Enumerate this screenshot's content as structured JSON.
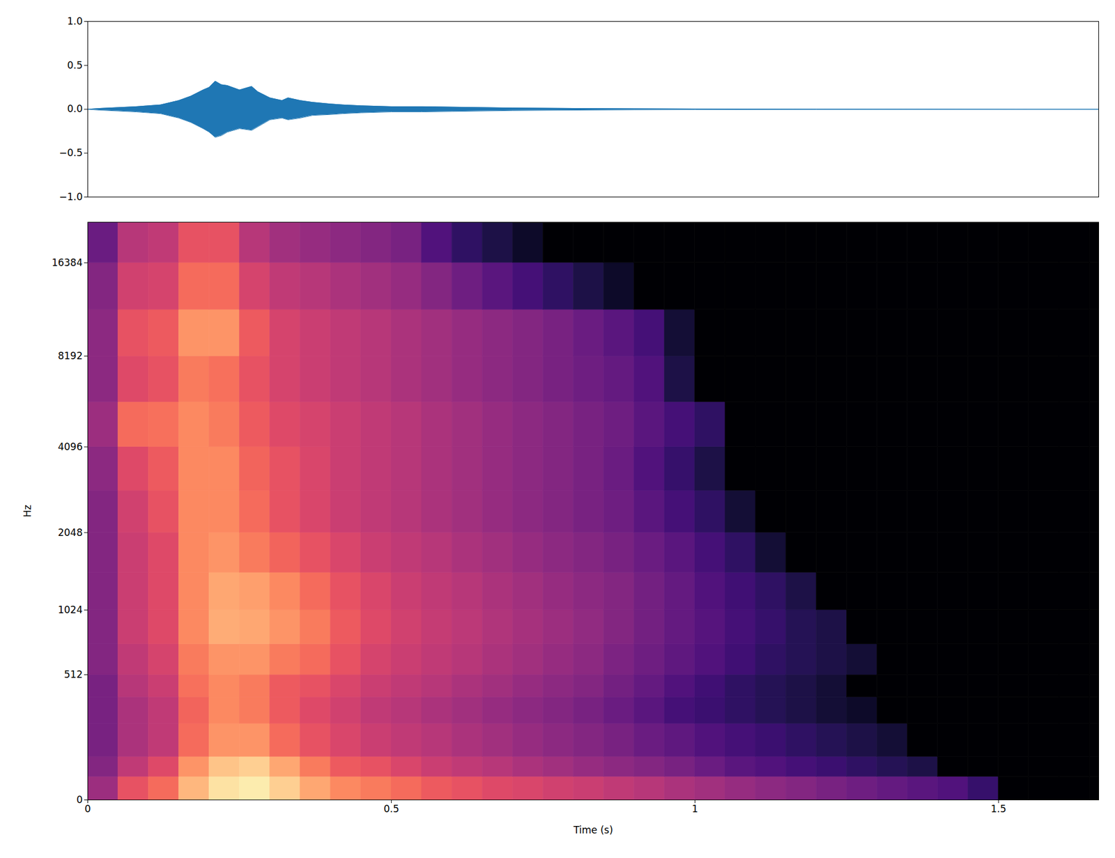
{
  "chart_data": [
    {
      "type": "area",
      "x": [
        0,
        0.02,
        0.05,
        0.08,
        0.1,
        0.12,
        0.15,
        0.17,
        0.19,
        0.2,
        0.21,
        0.22,
        0.23,
        0.25,
        0.27,
        0.28,
        0.3,
        0.32,
        0.33,
        0.35,
        0.37,
        0.4,
        0.42,
        0.45,
        0.5,
        0.55,
        0.6,
        0.7,
        0.8,
        0.9,
        1.0,
        1.2,
        1.4,
        1.665
      ],
      "upper": [
        0,
        0.01,
        0.02,
        0.03,
        0.04,
        0.05,
        0.1,
        0.15,
        0.22,
        0.25,
        0.32,
        0.28,
        0.27,
        0.22,
        0.26,
        0.2,
        0.13,
        0.1,
        0.13,
        0.1,
        0.08,
        0.06,
        0.05,
        0.04,
        0.03,
        0.03,
        0.025,
        0.015,
        0.01,
        0.006,
        0.004,
        0.002,
        0.001,
        0
      ],
      "lower": [
        0,
        -0.01,
        -0.02,
        -0.03,
        -0.04,
        -0.05,
        -0.1,
        -0.15,
        -0.22,
        -0.26,
        -0.32,
        -0.3,
        -0.26,
        -0.22,
        -0.24,
        -0.2,
        -0.12,
        -0.1,
        -0.12,
        -0.1,
        -0.07,
        -0.06,
        -0.05,
        -0.04,
        -0.03,
        -0.03,
        -0.025,
        -0.015,
        -0.01,
        -0.006,
        -0.004,
        -0.002,
        -0.001,
        0
      ],
      "color": "#1f77b4",
      "xlim": [
        0,
        1.665
      ],
      "ylim": [
        -1,
        1
      ],
      "yticks": [
        {
          "value": -1,
          "label": "−1.0"
        },
        {
          "value": -0.5,
          "label": "−0.5"
        },
        {
          "value": 0,
          "label": "0.0"
        },
        {
          "value": 0.5,
          "label": "0.5"
        },
        {
          "value": 1,
          "label": "1.0"
        }
      ],
      "tick_labels": "y",
      "grid": false
    },
    {
      "type": "heatmap",
      "xlabel": "Time (s)",
      "ylabel": "Hz",
      "log": "y",
      "color": "magma",
      "xlim": [
        0,
        1.665
      ],
      "ylim": [
        0,
        22050
      ],
      "xticks": [
        0,
        0.5,
        1,
        1.5
      ],
      "yticks": [
        0,
        512,
        1024,
        2048,
        4096,
        8192,
        16384
      ],
      "grid": false,
      "zlim": [
        -80,
        0
      ],
      "time_bins": [
        0,
        0.05,
        0.1,
        0.15,
        0.2,
        0.25,
        0.3,
        0.35,
        0.4,
        0.45,
        0.5,
        0.55,
        0.6,
        0.65,
        0.7,
        0.75,
        0.8,
        0.85,
        0.9,
        0.95,
        1.0,
        1.05,
        1.1,
        1.15,
        1.2,
        1.25,
        1.3,
        1.35,
        1.4,
        1.45,
        1.5,
        1.55,
        1.6,
        1.65,
        1.665
      ],
      "freq_bins": [
        0,
        64,
        128,
        256,
        384,
        512,
        724,
        1024,
        1448,
        2048,
        2896,
        4096,
        5793,
        8192,
        11585,
        16384,
        22050
      ],
      "cells": [
        [
          -45,
          -30,
          -25,
          -12,
          -5,
          -3,
          -8,
          -15,
          -20,
          -22,
          -25,
          -28,
          -30,
          -32,
          -33,
          -35,
          -36,
          -38,
          -40,
          -42,
          -44,
          -46,
          -48,
          -50,
          -52,
          -54,
          -56,
          -58,
          -60,
          -65,
          -80,
          -80,
          -80,
          -80
        ],
        [
          -50,
          -38,
          -32,
          -18,
          -10,
          -8,
          -15,
          -22,
          -28,
          -30,
          -33,
          -36,
          -38,
          -40,
          -42,
          -44,
          -46,
          -48,
          -50,
          -52,
          -55,
          -58,
          -60,
          -62,
          -64,
          -66,
          -68,
          -70,
          -80,
          -80,
          -80,
          -80,
          -80,
          -80
        ],
        [
          -52,
          -42,
          -38,
          -25,
          -18,
          -18,
          -25,
          -30,
          -33,
          -36,
          -38,
          -40,
          -42,
          -44,
          -46,
          -48,
          -50,
          -52,
          -55,
          -57,
          -60,
          -62,
          -64,
          -66,
          -68,
          -70,
          -72,
          -80,
          -80,
          -80,
          -80,
          -80,
          -80,
          -80
        ],
        [
          -52,
          -42,
          -38,
          -26,
          -20,
          -22,
          -28,
          -32,
          -35,
          -38,
          -40,
          -42,
          -44,
          -46,
          -48,
          -50,
          -52,
          -55,
          -58,
          -62,
          -64,
          -66,
          -68,
          -70,
          -72,
          -74,
          -80,
          -80,
          -80,
          -80,
          -80,
          -80,
          -80,
          -80
        ],
        [
          -52,
          -40,
          -36,
          -24,
          -20,
          -22,
          -28,
          -30,
          -33,
          -36,
          -38,
          -40,
          -42,
          -44,
          -46,
          -48,
          -50,
          -53,
          -56,
          -60,
          -63,
          -66,
          -68,
          -70,
          -72,
          -80,
          -80,
          -80,
          -80,
          -80,
          -80,
          -80,
          -80,
          -80
        ],
        [
          -50,
          -38,
          -34,
          -22,
          -18,
          -18,
          -22,
          -25,
          -30,
          -34,
          -36,
          -38,
          -40,
          -42,
          -44,
          -46,
          -48,
          -51,
          -54,
          -57,
          -60,
          -63,
          -66,
          -68,
          -70,
          -72,
          -80,
          -80,
          -80,
          -80,
          -80,
          -80,
          -80,
          -80
        ],
        [
          -50,
          -36,
          -32,
          -20,
          -14,
          -15,
          -18,
          -22,
          -28,
          -32,
          -35,
          -37,
          -39,
          -41,
          -43,
          -45,
          -47,
          -50,
          -53,
          -56,
          -59,
          -62,
          -65,
          -68,
          -70,
          -80,
          -80,
          -80,
          -80,
          -80,
          -80,
          -80,
          -80,
          -80
        ],
        [
          -50,
          -36,
          -32,
          -20,
          -15,
          -16,
          -20,
          -25,
          -30,
          -33,
          -36,
          -38,
          -40,
          -42,
          -44,
          -46,
          -48,
          -50,
          -53,
          -56,
          -60,
          -63,
          -66,
          -70,
          -80,
          -80,
          -80,
          -80,
          -80,
          -80,
          -80,
          -80,
          -80,
          -80
        ],
        [
          -50,
          -36,
          -32,
          -20,
          -18,
          -22,
          -26,
          -30,
          -33,
          -36,
          -38,
          -40,
          -42,
          -44,
          -46,
          -48,
          -50,
          -52,
          -55,
          -58,
          -62,
          -66,
          -72,
          -80,
          -80,
          -80,
          -80,
          -80,
          -80,
          -80,
          -80,
          -80,
          -80,
          -80
        ],
        [
          -50,
          -35,
          -30,
          -20,
          -20,
          -25,
          -30,
          -33,
          -36,
          -38,
          -40,
          -42,
          -44,
          -46,
          -48,
          -50,
          -52,
          -54,
          -58,
          -62,
          -66,
          -72,
          -80,
          -80,
          -80,
          -80,
          -80,
          -80,
          -80,
          -80,
          -80,
          -80,
          -80,
          -80
        ],
        [
          -48,
          -32,
          -28,
          -20,
          -20,
          -26,
          -30,
          -33,
          -36,
          -38,
          -40,
          -42,
          -44,
          -46,
          -48,
          -50,
          -52,
          -55,
          -60,
          -65,
          -70,
          -80,
          -80,
          -80,
          -80,
          -80,
          -80,
          -80,
          -80,
          -80,
          -80,
          -80,
          -80,
          -80
        ],
        [
          -45,
          -25,
          -24,
          -20,
          -22,
          -28,
          -32,
          -34,
          -36,
          -38,
          -40,
          -42,
          -44,
          -46,
          -48,
          -50,
          -52,
          -54,
          -58,
          -62,
          -66,
          -80,
          -80,
          -80,
          -80,
          -80,
          -80,
          -80,
          -80,
          -80,
          -80,
          -80,
          -80,
          -80
        ],
        [
          -48,
          -32,
          -30,
          -22,
          -24,
          -30,
          -34,
          -36,
          -38,
          -40,
          -42,
          -44,
          -46,
          -48,
          -50,
          -52,
          -54,
          -56,
          -60,
          -70,
          -80,
          -80,
          -80,
          -80,
          -80,
          -80,
          -80,
          -80,
          -80,
          -80,
          -80,
          -80,
          -80,
          -80
        ],
        [
          -48,
          -30,
          -28,
          -18,
          -18,
          -28,
          -34,
          -36,
          -38,
          -40,
          -42,
          -44,
          -46,
          -48,
          -50,
          -52,
          -55,
          -58,
          -62,
          -72,
          -80,
          -80,
          -80,
          -80,
          -80,
          -80,
          -80,
          -80,
          -80,
          -80,
          -80,
          -80,
          -80,
          -80
        ],
        [
          -50,
          -35,
          -34,
          -25,
          -25,
          -34,
          -38,
          -40,
          -42,
          -44,
          -46,
          -50,
          -54,
          -58,
          -62,
          -66,
          -70,
          -74,
          -80,
          -80,
          -80,
          -80,
          -80,
          -80,
          -80,
          -80,
          -80,
          -80,
          -80,
          -80,
          -80,
          -80,
          -80,
          -80
        ],
        [
          -55,
          -40,
          -38,
          -30,
          -30,
          -40,
          -44,
          -46,
          -48,
          -50,
          -52,
          -60,
          -66,
          -70,
          -74,
          -80,
          -80,
          -80,
          -80,
          -80,
          -80,
          -80,
          -80,
          -80,
          -80,
          -80,
          -80,
          -80,
          -80,
          -80,
          -80,
          -80,
          -80,
          -80
        ]
      ]
    }
  ]
}
